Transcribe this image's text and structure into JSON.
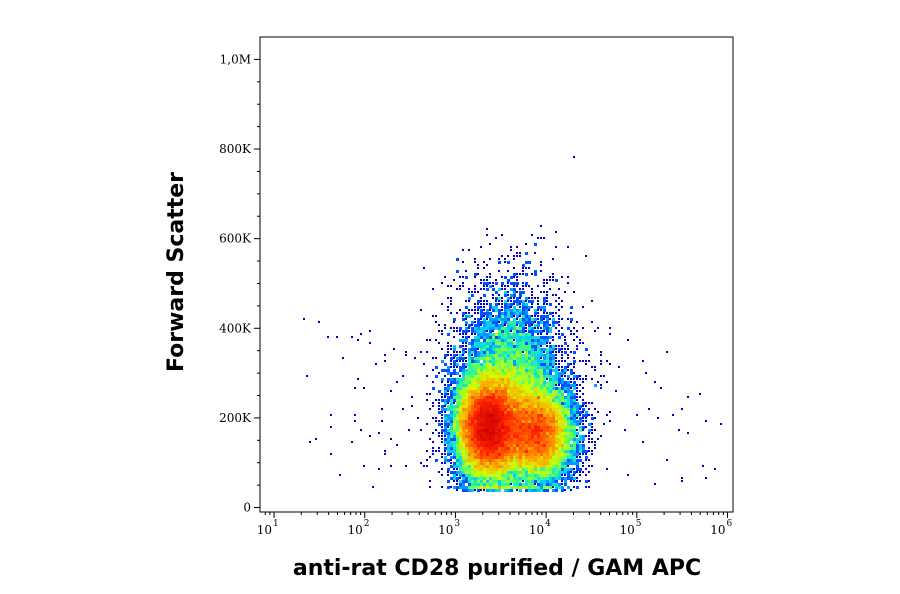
{
  "chart_data": {
    "type": "scatter",
    "subtype": "flow-cytometry-density-plot",
    "xlabel": "anti-rat CD28 purified / GAM APC",
    "ylabel": "Forward Scatter",
    "x_scale": "log",
    "xlim": [
      7,
      1150000
    ],
    "y_scale": "linear",
    "ylim": [
      -10000,
      1050000
    ],
    "x_ticks": [
      {
        "value": 10,
        "base": "10",
        "exp": "1"
      },
      {
        "value": 100,
        "base": "10",
        "exp": "2"
      },
      {
        "value": 1000,
        "base": "10",
        "exp": "3"
      },
      {
        "value": 10000,
        "base": "10",
        "exp": "4"
      },
      {
        "value": 100000,
        "base": "10",
        "exp": "5"
      },
      {
        "value": 1000000,
        "base": "10",
        "exp": "6"
      }
    ],
    "y_ticks": [
      {
        "value": 0,
        "label": "0"
      },
      {
        "value": 200000,
        "label": "200K"
      },
      {
        "value": 400000,
        "label": "400K"
      },
      {
        "value": 600000,
        "label": "600K"
      },
      {
        "value": 800000,
        "label": "800K"
      },
      {
        "value": 1000000,
        "label": "1,0M"
      }
    ],
    "populations": [
      {
        "x_center": 2300,
        "y_center": 180000,
        "log_x_spread": 0.17,
        "y_spread": 55000,
        "weight": 1.0
      },
      {
        "x_center": 8000,
        "y_center": 165000,
        "log_x_spread": 0.2,
        "y_spread": 50000,
        "weight": 0.55
      },
      {
        "x_center": 4000,
        "y_center": 250000,
        "log_x_spread": 0.3,
        "y_spread": 110000,
        "weight": 0.45
      }
    ],
    "color_scale": [
      "#0000c8",
      "#0050ff",
      "#00c8ff",
      "#3cff80",
      "#d2ff00",
      "#ffa000",
      "#ff2000",
      "#c80000"
    ],
    "grid": false,
    "legend": "none"
  }
}
